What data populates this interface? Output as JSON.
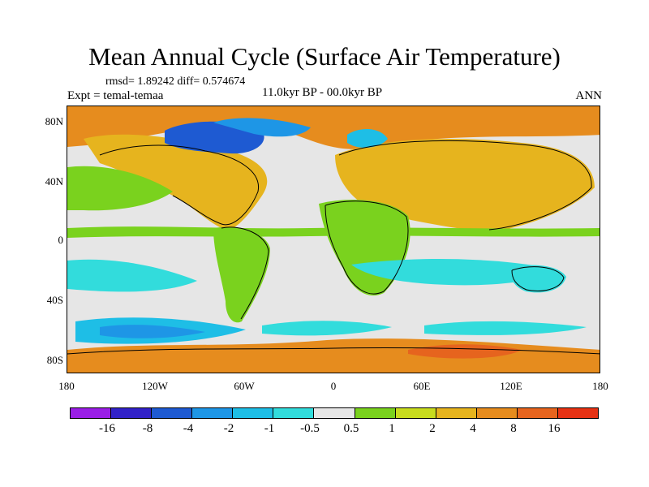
{
  "title": "Mean Annual Cycle (Surface Air Temperature)",
  "stats": "rmsd= 1.89242 diff= 0.574674",
  "experiment": "Expt = temal-temaa",
  "period": "11.0kyr BP - 00.0kyr BP",
  "season": "ANN",
  "lat_ticks": [
    "80N",
    "40N",
    "0",
    "40S",
    "80S"
  ],
  "lon_ticks": [
    "180",
    "120W",
    "60W",
    "0",
    "60E",
    "120E",
    "180"
  ],
  "legend": {
    "labels": [
      "-16",
      "-8",
      "-4",
      "-2",
      "-1",
      "-0.5",
      "0.5",
      "1",
      "2",
      "4",
      "8",
      "16"
    ],
    "colors": [
      "#9a1ee6",
      "#3222c8",
      "#1e5ad2",
      "#1e96e6",
      "#1ebee6",
      "#32dcdc",
      "#e6e6e6",
      "#7ad21e",
      "#c8dc1e",
      "#e6b41e",
      "#e68c1e",
      "#e6641e",
      "#e63214"
    ]
  },
  "map_colors": {
    "neutral": "#e6e6e6",
    "light_warm": "#7ad21e",
    "warm": "#e6b41e",
    "hot": "#e68c1e",
    "hotter": "#e6641e",
    "light_cold": "#32dcdc",
    "cold": "#1ebee6",
    "colder": "#1e96e6",
    "coldest": "#1e5ad2"
  }
}
